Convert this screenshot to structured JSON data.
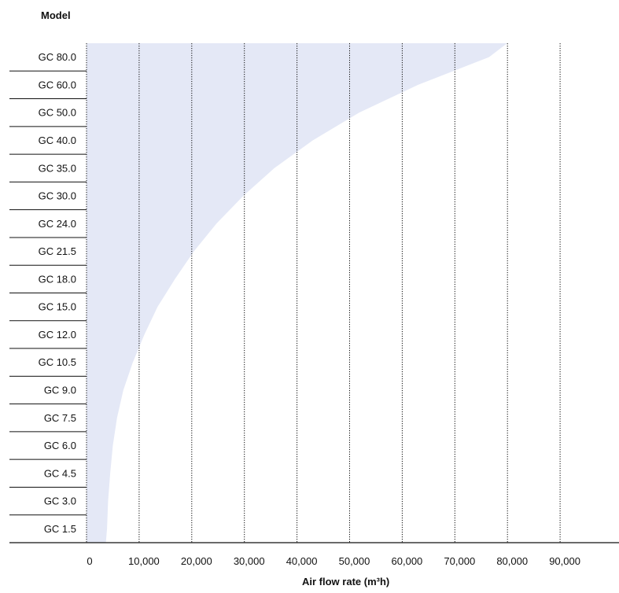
{
  "chart_data": {
    "type": "area",
    "ylabel": "Model",
    "xlabel": "Air flow rate (m³h)",
    "categories": [
      "GC 80.0",
      "GC 60.0",
      "GC 50.0",
      "GC 40.0",
      "GC 35.0",
      "GC 30.0",
      "GC 24.0",
      "GC 21.5",
      "GC 18.0",
      "GC 15.0",
      "GC 12.0",
      "GC 10.5",
      "GC 9.0",
      "GC 7.5",
      "GC 6.0",
      "GC 4.5",
      "GC 3.0",
      "GC 1.5"
    ],
    "x_ticks": [
      "0",
      "10,000",
      "20,000",
      "30,000",
      "40,000",
      "50,000",
      "60,000",
      "70,000",
      "80,000",
      "90,000"
    ],
    "xlim": [
      0,
      100000
    ],
    "grid": "vertical dotted",
    "colors": {
      "area": "#e4e8f6",
      "grid": "#111111",
      "axis": "#111111"
    },
    "series": [
      {
        "x_range_by_model": [
          {
            "model": "GC 1.5",
            "min": 0,
            "max": 3900
          },
          {
            "model": "GC 3.0",
            "min": 0,
            "max": 4100
          },
          {
            "model": "GC 4.5",
            "min": 0,
            "max": 4500
          },
          {
            "model": "GC 6.0",
            "min": 0,
            "max": 5000
          },
          {
            "model": "GC 7.5",
            "min": 0,
            "max": 5800
          },
          {
            "model": "GC 9.0",
            "min": 0,
            "max": 7000
          },
          {
            "model": "GC 10.5",
            "min": 0,
            "max": 8800
          },
          {
            "model": "GC 12.0",
            "min": 0,
            "max": 11000
          },
          {
            "model": "GC 15.0",
            "min": 0,
            "max": 13500
          },
          {
            "model": "GC 18.0",
            "min": 0,
            "max": 16800
          },
          {
            "model": "GC 21.5",
            "min": 0,
            "max": 20400
          },
          {
            "model": "GC 24.0",
            "min": 0,
            "max": 24700
          },
          {
            "model": "GC 30.0",
            "min": 0,
            "max": 29800
          },
          {
            "model": "GC 35.0",
            "min": 0,
            "max": 35700
          },
          {
            "model": "GC 40.0",
            "min": 0,
            "max": 43000
          },
          {
            "model": "GC 50.0",
            "min": 0,
            "max": 51800
          },
          {
            "model": "GC 60.0",
            "min": 0,
            "max": 63000
          },
          {
            "model": "GC 80.0",
            "min": 0,
            "max": 76500
          }
        ]
      }
    ]
  }
}
